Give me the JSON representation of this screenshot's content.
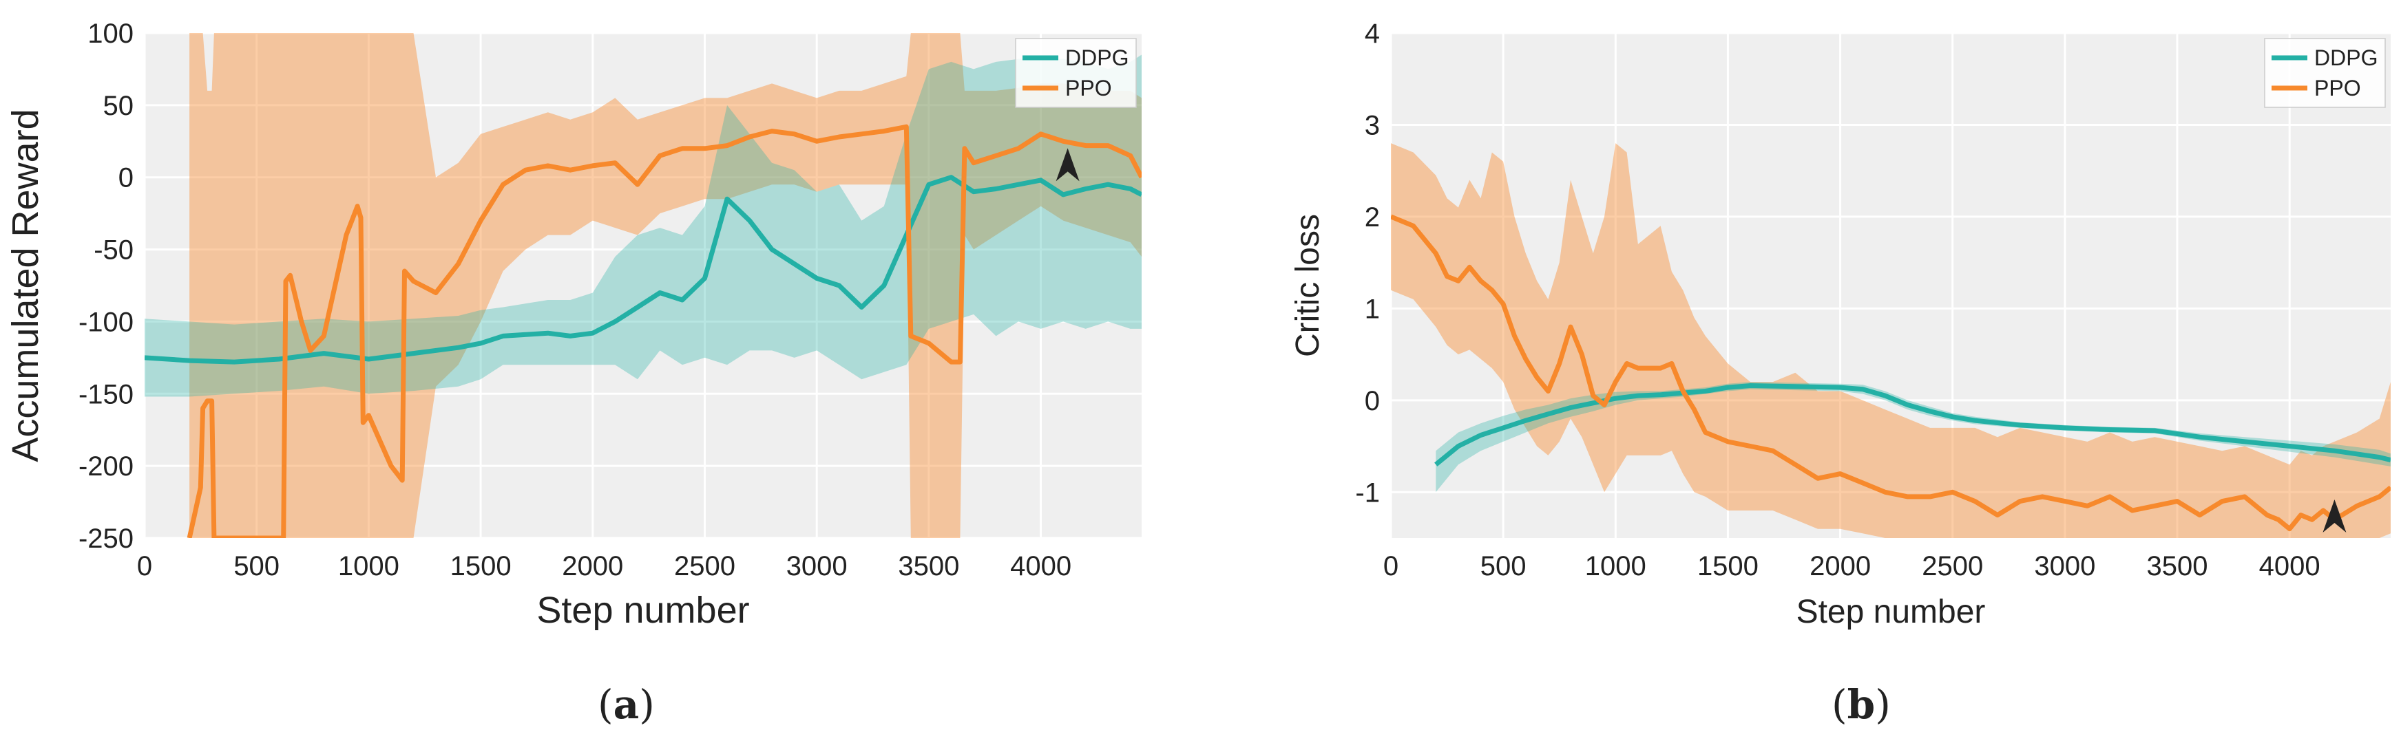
{
  "colors": {
    "ddpg": "#23b0a5",
    "ppo": "#f7892c",
    "plot_bg": "#efefef",
    "grid": "#ffffff"
  },
  "panels": [
    {
      "label_prefix": "(",
      "label_letter": "a",
      "label_suffix": ")"
    },
    {
      "label_prefix": "(",
      "label_letter": "b",
      "label_suffix": ")"
    }
  ],
  "chart_data": [
    {
      "type": "line",
      "title": "",
      "xlabel": "Step number",
      "ylabel": "Accumulated Reward",
      "xlim": [
        0,
        4450
      ],
      "ylim": [
        -250,
        100
      ],
      "xticks": [
        0,
        500,
        1000,
        1500,
        2000,
        2500,
        3000,
        3500,
        4000
      ],
      "yticks": [
        -250,
        -200,
        -150,
        -100,
        -50,
        0,
        50,
        100
      ],
      "legend": [
        "DDPG",
        "PPO"
      ],
      "legend_position": "top-right",
      "grid": true,
      "annotation": {
        "type": "arrow-marker",
        "x": 4120,
        "y": 3
      },
      "series": [
        {
          "name": "DDPG",
          "x": [
            0,
            200,
            400,
            600,
            800,
            1000,
            1200,
            1400,
            1500,
            1600,
            1800,
            1900,
            2000,
            2100,
            2200,
            2300,
            2400,
            2500,
            2600,
            2700,
            2800,
            2900,
            3000,
            3100,
            3200,
            3300,
            3400,
            3500,
            3600,
            3700,
            3800,
            3900,
            4000,
            4100,
            4200,
            4300,
            4400,
            4450
          ],
          "y": [
            -125,
            -127,
            -128,
            -126,
            -122,
            -126,
            -122,
            -118,
            -115,
            -110,
            -108,
            -110,
            -108,
            -100,
            -90,
            -80,
            -85,
            -70,
            -15,
            -30,
            -50,
            -60,
            -70,
            -75,
            -90,
            -75,
            -40,
            -5,
            0,
            -10,
            -8,
            -5,
            -2,
            -12,
            -8,
            -5,
            -8,
            -12
          ],
          "lower": [
            -152,
            -152,
            -150,
            -148,
            -145,
            -150,
            -148,
            -145,
            -140,
            -130,
            -130,
            -130,
            -130,
            -130,
            -140,
            -120,
            -130,
            -125,
            -130,
            -120,
            -120,
            -125,
            -120,
            -130,
            -140,
            -135,
            -130,
            -105,
            -100,
            -95,
            -110,
            -100,
            -105,
            -100,
            -105,
            -100,
            -105,
            -105
          ],
          "upper": [
            -98,
            -100,
            -102,
            -100,
            -98,
            -100,
            -98,
            -96,
            -92,
            -90,
            -85,
            -85,
            -80,
            -55,
            -40,
            -35,
            -40,
            -20,
            50,
            30,
            10,
            5,
            -10,
            -5,
            -30,
            -20,
            30,
            75,
            80,
            75,
            80,
            82,
            82,
            82,
            80,
            75,
            80,
            85
          ]
        },
        {
          "name": "PPO",
          "x": [
            200,
            250,
            260,
            280,
            300,
            310,
            620,
            630,
            650,
            700,
            740,
            800,
            850,
            900,
            950,
            965,
            975,
            1000,
            1100,
            1150,
            1160,
            1200,
            1300,
            1400,
            1500,
            1600,
            1700,
            1800,
            1900,
            2000,
            2100,
            2200,
            2300,
            2400,
            2500,
            2600,
            2700,
            2800,
            2900,
            3000,
            3100,
            3200,
            3300,
            3400,
            3420,
            3500,
            3600,
            3640,
            3660,
            3700,
            3800,
            3900,
            4000,
            4100,
            4200,
            4300,
            4400,
            4450
          ],
          "y": [
            -250,
            -215,
            -160,
            -155,
            -155,
            -250,
            -250,
            -72,
            -68,
            -100,
            -120,
            -110,
            -75,
            -40,
            -20,
            -28,
            -170,
            -165,
            -200,
            -210,
            -65,
            -72,
            -80,
            -60,
            -30,
            -5,
            5,
            8,
            5,
            8,
            10,
            -5,
            15,
            20,
            20,
            22,
            28,
            32,
            30,
            25,
            28,
            30,
            32,
            35,
            -110,
            -115,
            -128,
            -128,
            20,
            10,
            15,
            20,
            30,
            25,
            22,
            22,
            15,
            0
          ],
          "lower": [
            -250,
            -250,
            -250,
            -250,
            -250,
            -250,
            -250,
            -250,
            -250,
            -250,
            -250,
            -250,
            -250,
            -250,
            -250,
            -250,
            -250,
            -250,
            -250,
            -250,
            -250,
            -250,
            -145,
            -130,
            -100,
            -65,
            -50,
            -40,
            -40,
            -30,
            -35,
            -40,
            -25,
            -20,
            -15,
            -15,
            -10,
            -5,
            -5,
            -10,
            -5,
            -5,
            -5,
            -5,
            -250,
            -250,
            -250,
            -250,
            -40,
            -50,
            -40,
            -30,
            -20,
            -30,
            -35,
            -40,
            -45,
            -55
          ],
          "upper": [
            100,
            100,
            100,
            60,
            60,
            100,
            100,
            100,
            100,
            100,
            100,
            100,
            100,
            100,
            100,
            100,
            100,
            100,
            100,
            100,
            100,
            100,
            0,
            10,
            30,
            35,
            40,
            45,
            40,
            45,
            55,
            40,
            45,
            50,
            55,
            55,
            60,
            65,
            60,
            55,
            60,
            60,
            65,
            70,
            100,
            100,
            100,
            100,
            60,
            60,
            60,
            62,
            65,
            65,
            62,
            60,
            60,
            55
          ]
        }
      ]
    },
    {
      "type": "line",
      "title": "",
      "xlabel": "Step number",
      "ylabel": "Critic loss",
      "xlim": [
        0,
        4450
      ],
      "ylim": [
        -1.5,
        4
      ],
      "xticks": [
        0,
        500,
        1000,
        1500,
        2000,
        2500,
        3000,
        3500,
        4000
      ],
      "yticks": [
        -1,
        0,
        1,
        2,
        3,
        4
      ],
      "legend": [
        "DDPG",
        "PPO"
      ],
      "legend_position": "top-right",
      "grid": true,
      "annotation": {
        "type": "arrow-marker",
        "x": 4200,
        "y": -1.35
      },
      "series": [
        {
          "name": "DDPG",
          "x": [
            200,
            300,
            400,
            500,
            600,
            700,
            800,
            900,
            1000,
            1100,
            1200,
            1300,
            1400,
            1500,
            1600,
            1800,
            2000,
            2100,
            2200,
            2300,
            2400,
            2500,
            2600,
            2800,
            3000,
            3200,
            3400,
            3600,
            3800,
            4000,
            4200,
            4400,
            4450
          ],
          "y": [
            -0.7,
            -0.5,
            -0.38,
            -0.3,
            -0.22,
            -0.15,
            -0.08,
            -0.03,
            0.02,
            0.05,
            0.06,
            0.08,
            0.1,
            0.14,
            0.16,
            0.15,
            0.14,
            0.12,
            0.05,
            -0.05,
            -0.12,
            -0.18,
            -0.22,
            -0.27,
            -0.3,
            -0.32,
            -0.33,
            -0.4,
            -0.45,
            -0.5,
            -0.55,
            -0.62,
            -0.65
          ],
          "lower": [
            -1.0,
            -0.7,
            -0.55,
            -0.45,
            -0.35,
            -0.25,
            -0.18,
            -0.12,
            -0.05,
            0.0,
            0.02,
            0.04,
            0.07,
            0.1,
            0.12,
            0.11,
            0.1,
            0.07,
            0.0,
            -0.1,
            -0.17,
            -0.22,
            -0.26,
            -0.3,
            -0.33,
            -0.35,
            -0.36,
            -0.44,
            -0.5,
            -0.56,
            -0.62,
            -0.7,
            -0.72
          ],
          "upper": [
            -0.55,
            -0.35,
            -0.25,
            -0.17,
            -0.1,
            -0.05,
            0.02,
            0.06,
            0.09,
            0.1,
            0.1,
            0.12,
            0.14,
            0.18,
            0.2,
            0.19,
            0.18,
            0.17,
            0.1,
            0.0,
            -0.07,
            -0.14,
            -0.18,
            -0.24,
            -0.27,
            -0.29,
            -0.3,
            -0.36,
            -0.4,
            -0.44,
            -0.48,
            -0.54,
            -0.58
          ]
        },
        {
          "name": "PPO",
          "x": [
            0,
            100,
            200,
            250,
            300,
            350,
            400,
            450,
            500,
            550,
            600,
            650,
            700,
            750,
            800,
            850,
            900,
            950,
            1000,
            1050,
            1100,
            1200,
            1250,
            1300,
            1350,
            1400,
            1500,
            1600,
            1700,
            1800,
            1900,
            2000,
            2100,
            2200,
            2300,
            2400,
            2500,
            2600,
            2700,
            2800,
            2900,
            3000,
            3100,
            3200,
            3300,
            3400,
            3500,
            3600,
            3700,
            3800,
            3900,
            3950,
            4000,
            4050,
            4100,
            4150,
            4200,
            4300,
            4400,
            4450
          ],
          "y": [
            2.0,
            1.9,
            1.6,
            1.35,
            1.3,
            1.45,
            1.3,
            1.2,
            1.05,
            0.7,
            0.45,
            0.25,
            0.1,
            0.4,
            0.8,
            0.5,
            0.05,
            -0.05,
            0.2,
            0.4,
            0.35,
            0.35,
            0.4,
            0.1,
            -0.1,
            -0.35,
            -0.45,
            -0.5,
            -0.55,
            -0.7,
            -0.85,
            -0.8,
            -0.9,
            -1.0,
            -1.05,
            -1.05,
            -1.0,
            -1.1,
            -1.25,
            -1.1,
            -1.05,
            -1.1,
            -1.15,
            -1.05,
            -1.2,
            -1.15,
            -1.1,
            -1.25,
            -1.1,
            -1.05,
            -1.25,
            -1.3,
            -1.4,
            -1.25,
            -1.3,
            -1.2,
            -1.3,
            -1.15,
            -1.05,
            -0.95
          ],
          "lower": [
            1.2,
            1.1,
            0.8,
            0.6,
            0.5,
            0.55,
            0.45,
            0.35,
            0.2,
            -0.1,
            -0.3,
            -0.5,
            -0.6,
            -0.45,
            -0.2,
            -0.4,
            -0.7,
            -1.0,
            -0.8,
            -0.6,
            -0.6,
            -0.6,
            -0.55,
            -0.8,
            -1.0,
            -1.05,
            -1.2,
            -1.2,
            -1.2,
            -1.3,
            -1.4,
            -1.4,
            -1.45,
            -1.5,
            -1.5,
            -1.5,
            -1.5,
            -1.5,
            -1.5,
            -1.5,
            -1.5,
            -1.5,
            -1.5,
            -1.5,
            -1.5,
            -1.5,
            -1.5,
            -1.5,
            -1.5,
            -1.5,
            -1.5,
            -1.5,
            -1.5,
            -1.5,
            -1.5,
            -1.5,
            -1.5,
            -1.5,
            -1.5,
            -1.45
          ],
          "upper": [
            2.8,
            2.7,
            2.45,
            2.2,
            2.1,
            2.4,
            2.2,
            2.7,
            2.6,
            2.0,
            1.6,
            1.3,
            1.1,
            1.5,
            2.4,
            2.0,
            1.6,
            2.0,
            2.8,
            2.7,
            1.7,
            1.9,
            1.4,
            1.2,
            0.9,
            0.7,
            0.4,
            0.2,
            0.2,
            0.3,
            0.1,
            0.1,
            0.0,
            -0.1,
            -0.2,
            -0.3,
            -0.3,
            -0.3,
            -0.4,
            -0.3,
            -0.35,
            -0.4,
            -0.45,
            -0.35,
            -0.45,
            -0.4,
            -0.45,
            -0.5,
            -0.55,
            -0.5,
            -0.6,
            -0.65,
            -0.7,
            -0.55,
            -0.6,
            -0.5,
            -0.45,
            -0.35,
            -0.2,
            0.2
          ]
        }
      ]
    }
  ]
}
